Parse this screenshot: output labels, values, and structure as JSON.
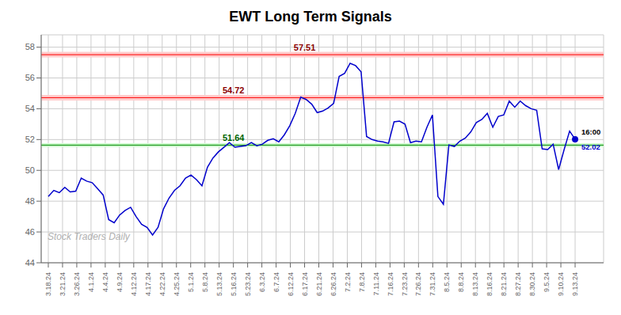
{
  "chart_data": {
    "type": "line",
    "title": "EWT Long Term Signals",
    "x": [
      0,
      0.385417,
      0.770833,
      1.15625,
      1.541667,
      1.927083,
      2.3125,
      2.697917,
      3.083333,
      3.46875,
      3.854167,
      4.239583,
      4.625,
      5.010417,
      5.395833,
      5.78125,
      6.166667,
      6.552083,
      6.9375,
      7.322917,
      7.708333,
      8.09375,
      8.479167,
      8.864583,
      9.25,
      9.635417,
      10.020833,
      10.40625,
      10.791667,
      11.177083,
      11.5625,
      11.947917,
      12.333333,
      12.71875,
      13.104167,
      13.489583,
      13.875,
      14.260417,
      14.645833,
      15.03125,
      15.416667,
      15.802083,
      16.1875,
      16.572917,
      16.958333,
      17.34375,
      17.729167,
      18.114583,
      18.5,
      18.885417,
      19.270833,
      19.65625,
      20.041667,
      20.427083,
      20.8125,
      21.197917,
      21.583333,
      21.96875,
      22.354167,
      22.739583,
      23.125,
      23.510417,
      23.895833,
      24.28125,
      24.666667,
      25.052083,
      25.4375,
      25.822917,
      26.208333,
      26.59375,
      26.979167,
      27.364583,
      27.75,
      28.135417,
      28.520833,
      28.90625,
      29.291667,
      29.677083,
      30.0625,
      30.447917,
      30.833333,
      31.21875,
      31.604167,
      31.989583,
      32.375,
      32.760417,
      33.145833,
      33.53125,
      33.916667,
      34.302083,
      34.6875,
      35.072917,
      35.458333,
      35.84375,
      36.229167,
      36.614583,
      37
    ],
    "series": [
      {
        "color": "#0000cc",
        "values": [
          48.3,
          48.7,
          48.55,
          48.9,
          48.6,
          48.65,
          49.5,
          49.3,
          49.2,
          48.8,
          48.4,
          46.8,
          46.6,
          47.1,
          47.4,
          47.6,
          47.0,
          46.5,
          46.3,
          45.8,
          46.3,
          47.5,
          48.2,
          48.7,
          49.0,
          49.5,
          49.7,
          49.4,
          49.0,
          50.2,
          50.8,
          51.2,
          51.5,
          51.8,
          51.5,
          51.55,
          51.6,
          51.8,
          51.6,
          51.7,
          51.95,
          52.05,
          51.85,
          52.3,
          52.9,
          53.7,
          54.75,
          54.6,
          54.3,
          53.75,
          53.85,
          54.05,
          54.35,
          56.1,
          56.3,
          56.95,
          56.8,
          56.4,
          52.2,
          52.0,
          51.9,
          51.85,
          51.75,
          53.15,
          53.2,
          53.0,
          51.8,
          51.9,
          51.85,
          52.8,
          53.6,
          48.3,
          47.8,
          51.65,
          51.55,
          51.9,
          52.1,
          52.5,
          53.1,
          53.3,
          53.7,
          52.8,
          53.5,
          53.6,
          54.5,
          54.1,
          54.5,
          54.2,
          54.0,
          53.9,
          51.4,
          51.35,
          51.7,
          50.05,
          51.35,
          52.55,
          52.02
        ]
      }
    ],
    "xlim": [
      -0.5,
      39
    ],
    "xticks": [
      {
        "value": 0,
        "label": "3.18.24"
      },
      {
        "value": 1,
        "label": "3.21.24"
      },
      {
        "value": 2,
        "label": "3.26.24"
      },
      {
        "value": 3,
        "label": "4.1.24"
      },
      {
        "value": 4,
        "label": "4.4.24"
      },
      {
        "value": 5,
        "label": "4.9.24"
      },
      {
        "value": 6,
        "label": "4.12.24"
      },
      {
        "value": 7,
        "label": "4.17.24"
      },
      {
        "value": 8,
        "label": "4.22.24"
      },
      {
        "value": 9,
        "label": "4.25.24"
      },
      {
        "value": 10,
        "label": "5.1.24"
      },
      {
        "value": 11,
        "label": "5.8.24"
      },
      {
        "value": 12,
        "label": "5.13.24"
      },
      {
        "value": 13,
        "label": "5.16.24"
      },
      {
        "value": 14,
        "label": "5.23.24"
      },
      {
        "value": 15,
        "label": "6.3.24"
      },
      {
        "value": 16,
        "label": "6.7.24"
      },
      {
        "value": 17,
        "label": "6.12.24"
      },
      {
        "value": 18,
        "label": "6.17.24"
      },
      {
        "value": 19,
        "label": "6.21.24"
      },
      {
        "value": 20,
        "label": "6.26.24"
      },
      {
        "value": 21,
        "label": "7.2.24"
      },
      {
        "value": 22,
        "label": "7.8.24"
      },
      {
        "value": 23,
        "label": "7.11.24"
      },
      {
        "value": 24,
        "label": "7.16.24"
      },
      {
        "value": 25,
        "label": "7.23.24"
      },
      {
        "value": 26,
        "label": "7.26.24"
      },
      {
        "value": 27,
        "label": "7.31.24"
      },
      {
        "value": 28,
        "label": "8.5.24"
      },
      {
        "value": 29,
        "label": "8.8.24"
      },
      {
        "value": 30,
        "label": "8.13.24"
      },
      {
        "value": 31,
        "label": "8.16.24"
      },
      {
        "value": 32,
        "label": "8.21.24"
      },
      {
        "value": 33,
        "label": "8.27.24"
      },
      {
        "value": 34,
        "label": "8.30.24"
      },
      {
        "value": 35,
        "label": "9.5.24"
      },
      {
        "value": 36,
        "label": "9.10.24"
      },
      {
        "value": 37,
        "label": "9.13.24"
      }
    ],
    "ylim": [
      44,
      58.8
    ],
    "yticks": [
      44,
      46,
      48,
      50,
      52,
      54,
      56,
      58
    ],
    "grid": true,
    "reference_lines": [
      {
        "value": 57.51,
        "label": "57.51",
        "color": "red",
        "label_color": "darkred",
        "label_x": 18,
        "band": [
          57.33,
          57.69
        ],
        "band_color": "#ffcccc"
      },
      {
        "value": 54.72,
        "label": "54.72",
        "color": "red",
        "label_color": "darkred",
        "label_x": 13,
        "band": [
          54.54,
          54.9
        ],
        "band_color": "#ffcccc"
      },
      {
        "value": 51.64,
        "label": "51.64",
        "color": "green",
        "label_color": "darkgreen",
        "label_x": 13,
        "band": [
          51.52,
          51.76
        ],
        "band_color": "#ccffcc"
      }
    ],
    "last_point": {
      "x": 37,
      "value": 52.02,
      "time_label": "16:00",
      "value_label": "52.02"
    },
    "watermark": {
      "text": "Stock Traders Daily",
      "color": "#b0b0b0"
    }
  }
}
